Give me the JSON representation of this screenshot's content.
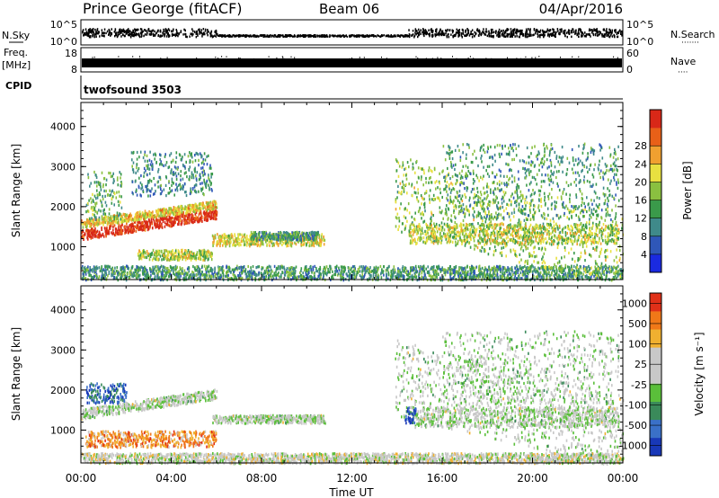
{
  "header": {
    "station": "Prince George (fitACF)",
    "beam": "Beam 06",
    "date": "04/Apr/2016"
  },
  "strips": {
    "nsky_label": "N.Sky",
    "nsky_ticks": [
      "10^5",
      "10^0"
    ],
    "nsearch_label": "N.Search",
    "nsearch_ticks": [
      "10^5",
      "10^0"
    ],
    "freq_label": "Freq.",
    "freq_unit": "[MHz]",
    "freq_ticks": [
      "18",
      "8"
    ],
    "nave_label": "Nave",
    "nave_ticks": [
      "60",
      "0"
    ],
    "cpid_label": "CPID",
    "cpid_value": "twofsound 3503"
  },
  "chart_data": [
    {
      "type": "heatmap",
      "name": "power-panel",
      "xlabel": "Time UT",
      "ylabel": "Slant Range [km]",
      "xlim": [
        0,
        24
      ],
      "ylim": [
        180,
        4600
      ],
      "x_ticks": [
        "00:00",
        "04:00",
        "08:00",
        "12:00",
        "16:00",
        "20:00",
        "00:00"
      ],
      "y_ticks": [
        "1000",
        "2000",
        "3000",
        "4000"
      ],
      "colorbar_label": "Power [dB]",
      "colorbar_ticks": [
        "4",
        "8",
        "12",
        "16",
        "20",
        "24",
        "28"
      ],
      "colors": [
        "#1a2ae0",
        "#2f57b8",
        "#3f8a8a",
        "#3a9a4a",
        "#8ac040",
        "#e8e040",
        "#f0a030",
        "#e86018",
        "#d82818"
      ],
      "scatter_regions": [
        {
          "t": [
            0.0,
            6.0
          ],
          "range": [
            1200,
            1450
          ],
          "slope": 520,
          "level": 0.95
        },
        {
          "t": [
            0.0,
            6.0
          ],
          "range": [
            1500,
            1700
          ],
          "slope": 480,
          "level": 0.65
        },
        {
          "t": [
            0.2,
            1.8
          ],
          "range": [
            1700,
            2900
          ],
          "slope": 0,
          "level": 0.4
        },
        {
          "t": [
            2.2,
            5.8
          ],
          "range": [
            2300,
            3400
          ],
          "slope": 0,
          "level": 0.3
        },
        {
          "t": [
            2.5,
            5.8
          ],
          "range": [
            700,
            950
          ],
          "slope": 0,
          "level": 0.55
        },
        {
          "t": [
            5.8,
            10.8
          ],
          "range": [
            1050,
            1350
          ],
          "slope": 0,
          "level": 0.6
        },
        {
          "t": [
            7.5,
            10.5
          ],
          "range": [
            1200,
            1400
          ],
          "slope": 0,
          "level": 0.35
        },
        {
          "t": [
            0.0,
            24.0
          ],
          "range": [
            200,
            550
          ],
          "slope": 0,
          "level": 0.35
        },
        {
          "t": [
            13.9,
            24.0
          ],
          "range": [
            1400,
            3300
          ],
          "slope": -1400,
          "level": 0.5
        },
        {
          "t": [
            14.5,
            23.8
          ],
          "range": [
            1100,
            1600
          ],
          "slope": 0,
          "level": 0.55
        },
        {
          "t": [
            16.0,
            23.8
          ],
          "range": [
            1700,
            3600
          ],
          "slope": 0,
          "level": 0.35
        }
      ]
    },
    {
      "type": "heatmap",
      "name": "velocity-panel",
      "xlabel": "Time UT",
      "ylabel": "Slant Range [km]",
      "xlim": [
        0,
        24
      ],
      "ylim": [
        180,
        4600
      ],
      "x_ticks": [
        "00:00",
        "04:00",
        "08:00",
        "12:00",
        "16:00",
        "20:00",
        "00:00"
      ],
      "y_ticks": [
        "1000",
        "2000",
        "3000",
        "4000"
      ],
      "colorbar_label": "Velocity [m s⁻¹]",
      "colorbar_ticks": [
        "1000",
        "500",
        "100",
        "25",
        "-25",
        "-100",
        "-500",
        "-1000"
      ],
      "colors": [
        "#1838b8",
        "#3a70c8",
        "#3a8a5a",
        "#5abf3a",
        "#c8c8c8",
        "#c8c8c8",
        "#f0b030",
        "#f07818",
        "#e03018"
      ],
      "scatter_regions": [
        {
          "t": [
            0.0,
            6.0
          ],
          "range": [
            1300,
            1550
          ],
          "slope": 500,
          "level": 0.5
        },
        {
          "t": [
            0.2,
            2.0
          ],
          "range": [
            1700,
            2200
          ],
          "slope": 0,
          "level": 0.15
        },
        {
          "t": [
            0.2,
            6.0
          ],
          "range": [
            600,
            1000
          ],
          "slope": 0,
          "level": 0.78
        },
        {
          "t": [
            5.8,
            10.8
          ],
          "range": [
            1200,
            1400
          ],
          "slope": 0,
          "level": 0.5
        },
        {
          "t": [
            0.0,
            24.0
          ],
          "range": [
            200,
            450
          ],
          "slope": 0,
          "level": 0.55
        },
        {
          "t": [
            13.9,
            24.0
          ],
          "range": [
            1400,
            3300
          ],
          "slope": -1400,
          "level": 0.5
        },
        {
          "t": [
            14.5,
            23.8
          ],
          "range": [
            1100,
            1600
          ],
          "slope": 0,
          "level": 0.5
        },
        {
          "t": [
            16.0,
            23.8
          ],
          "range": [
            1700,
            3500
          ],
          "slope": 0,
          "level": 0.48
        },
        {
          "t": [
            14.3,
            14.8
          ],
          "range": [
            1200,
            1600
          ],
          "slope": 0,
          "level": 0.1
        }
      ]
    }
  ]
}
